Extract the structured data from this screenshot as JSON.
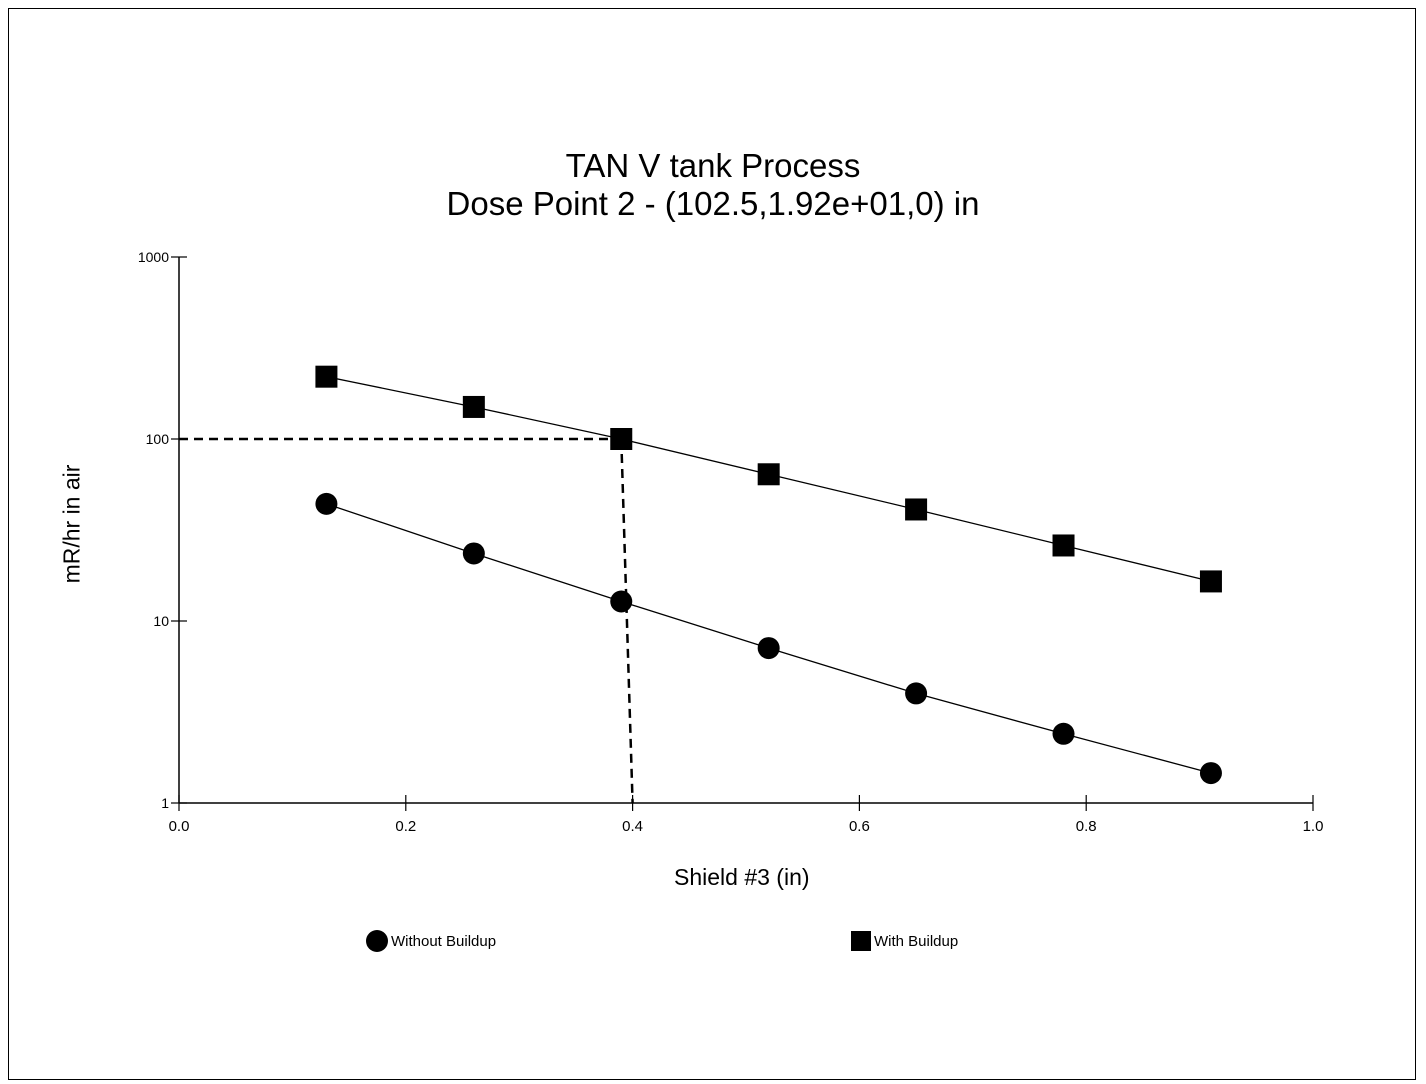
{
  "chart_data": {
    "type": "scatter",
    "title": "TAN V tank Process",
    "subtitle": "Dose Point 2 - (102.5,1.92e+01,0) in",
    "xlabel": "Shield #3 (in)",
    "ylabel": "mR/hr in air",
    "xlim": [
      0.0,
      1.0
    ],
    "ylim": [
      1,
      1000
    ],
    "yscale": "log",
    "x_ticks": [
      "0.0",
      "0.2",
      "0.4",
      "0.6",
      "0.8",
      "1.0"
    ],
    "y_ticks": [
      "1",
      "10",
      "100",
      "1000"
    ],
    "grid": false,
    "legend_position": "bottom",
    "series": [
      {
        "name": "Without Buildup",
        "marker": "circle",
        "color": "#000000",
        "x": [
          0.13,
          0.26,
          0.39,
          0.52,
          0.65,
          0.78,
          0.91
        ],
        "y": [
          44,
          23.5,
          12.8,
          7.1,
          4.0,
          2.4,
          1.46
        ]
      },
      {
        "name": "With Buildup",
        "marker": "square",
        "color": "#000000",
        "x": [
          0.13,
          0.26,
          0.39,
          0.52,
          0.65,
          0.78,
          0.91
        ],
        "y": [
          220,
          150,
          100,
          64,
          41,
          26,
          16.5
        ]
      }
    ],
    "reference_lines": [
      {
        "style": "dashed",
        "from": [
          0.0,
          100
        ],
        "to": [
          0.39,
          100
        ]
      },
      {
        "style": "dashed",
        "from": [
          0.39,
          100
        ],
        "to": [
          0.4,
          1
        ]
      }
    ]
  }
}
